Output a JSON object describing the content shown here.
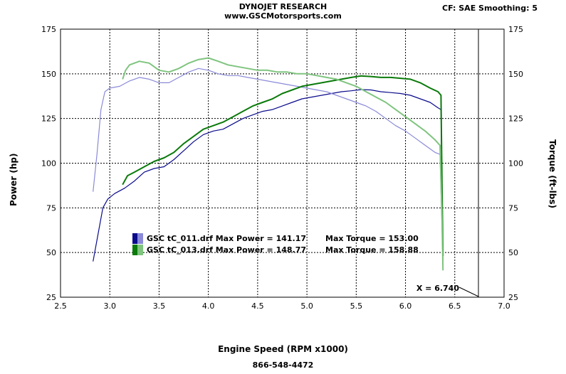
{
  "header": {
    "title": "DYNOJET RESEARCH",
    "subtitle": "www.GSCMotorsports.com",
    "settings": "CF: SAE  Smoothing: 5"
  },
  "footer": {
    "phone": "866-548-4472"
  },
  "colors": {
    "run1_power": "#0a0a8c",
    "run1_torque": "#8a8ad8",
    "run2_power": "#0a7a0a",
    "run2_torque": "#7fc47f"
  },
  "chart_data": {
    "type": "line",
    "xlabel": "Engine Speed (RPM x1000)",
    "ylabel": "Power (hp)",
    "ylabel_right": "Torque (ft-lbs)",
    "xlim": [
      2.5,
      7.0
    ],
    "ylim": [
      25,
      175
    ],
    "xticks": [
      "2.5",
      "3.0",
      "3.5",
      "4.0",
      "4.5",
      "5.0",
      "5.5",
      "6.0",
      "6.5",
      "7.0"
    ],
    "yticks": [
      "25",
      "50",
      "75",
      "100",
      "125",
      "150",
      "175"
    ],
    "yticks_right": [
      "25",
      "50",
      "75",
      "100",
      "125",
      "150",
      "175"
    ],
    "grid": true,
    "cursor": {
      "x": 6.74,
      "label": "X = 6.740"
    },
    "legend": [
      {
        "file": "GSC tC_011.drf",
        "text": "GSC tC_011.drf Max Power = 141.17",
        "torque_text": "Max Torque = 153.00"
      },
      {
        "file": "GSC tC_013.drf",
        "text": "GSC tC_013.drf Max Power = 148.77",
        "torque_text": "Max Torque = 158.88"
      }
    ],
    "series": [
      {
        "kind": "power",
        "x": [
          2.83,
          2.88,
          2.93,
          2.98,
          3.05,
          3.15,
          3.25,
          3.35,
          3.45,
          3.55,
          3.65,
          3.75,
          3.85,
          3.95,
          4.05,
          4.15,
          4.25,
          4.35,
          4.45,
          4.55,
          4.65,
          4.75,
          4.85,
          4.95,
          5.05,
          5.15,
          5.25,
          5.35,
          5.45,
          5.55,
          5.65,
          5.75,
          5.85,
          5.95,
          6.05,
          6.15,
          6.25,
          6.33,
          6.36,
          6.37,
          6.38
        ],
        "y": [
          45,
          60,
          75,
          80,
          83,
          86,
          90,
          95,
          97,
          98,
          102,
          107,
          112,
          116,
          118,
          119,
          122,
          125,
          127,
          129,
          130,
          132,
          134,
          136,
          137,
          138,
          139,
          140,
          140.5,
          141.2,
          141,
          140,
          139.5,
          139,
          138,
          136,
          134,
          131,
          130,
          80,
          45
        ]
      },
      {
        "kind": "torque",
        "x": [
          2.83,
          2.87,
          2.91,
          2.95,
          3.0,
          3.1,
          3.2,
          3.3,
          3.4,
          3.5,
          3.6,
          3.7,
          3.8,
          3.9,
          4.0,
          4.1,
          4.2,
          4.3,
          4.4,
          4.5,
          4.6,
          4.7,
          4.8,
          4.9,
          5.0,
          5.1,
          5.2,
          5.3,
          5.4,
          5.5,
          5.6,
          5.7,
          5.8,
          5.9,
          6.0,
          6.1,
          6.2,
          6.3,
          6.35,
          6.37,
          6.38
        ],
        "y": [
          84,
          105,
          130,
          140,
          142,
          143,
          146,
          148,
          147,
          145,
          145,
          148,
          151,
          153,
          152,
          150,
          149,
          149,
          148,
          147,
          146,
          145,
          144,
          143,
          142,
          141,
          140,
          138,
          136,
          134,
          132,
          129,
          125,
          121,
          118,
          114,
          110,
          106,
          105,
          65,
          42
        ]
      },
      {
        "kind": "power",
        "x": [
          3.13,
          3.18,
          3.25,
          3.35,
          3.45,
          3.55,
          3.65,
          3.75,
          3.85,
          3.95,
          4.05,
          4.15,
          4.25,
          4.35,
          4.45,
          4.55,
          4.65,
          4.75,
          4.85,
          4.95,
          5.05,
          5.15,
          5.25,
          5.35,
          5.45,
          5.55,
          5.65,
          5.75,
          5.85,
          5.95,
          6.05,
          6.15,
          6.25,
          6.33,
          6.36,
          6.37,
          6.38
        ],
        "y": [
          88,
          93,
          95,
          98,
          101,
          103,
          106,
          111,
          115,
          119,
          121,
          123,
          126,
          129,
          132,
          134,
          136,
          139,
          141,
          143,
          144,
          145,
          146,
          147,
          148,
          148.8,
          148.5,
          148,
          148,
          147.5,
          147,
          145,
          142,
          140,
          138,
          90,
          48
        ]
      },
      {
        "kind": "torque",
        "x": [
          3.13,
          3.16,
          3.2,
          3.3,
          3.4,
          3.5,
          3.6,
          3.7,
          3.8,
          3.9,
          4.0,
          4.1,
          4.2,
          4.3,
          4.4,
          4.5,
          4.6,
          4.7,
          4.8,
          4.9,
          5.0,
          5.1,
          5.2,
          5.3,
          5.4,
          5.5,
          5.6,
          5.7,
          5.8,
          5.9,
          6.0,
          6.1,
          6.2,
          6.3,
          6.35,
          6.37,
          6.38
        ],
        "y": [
          147,
          152,
          155,
          157,
          156,
          152,
          151,
          153,
          156,
          158,
          158.9,
          157,
          155,
          154,
          153,
          152,
          152,
          151,
          151,
          150,
          150,
          149,
          148,
          147,
          145,
          143,
          140,
          137,
          134,
          130,
          126,
          122,
          118,
          113,
          110,
          70,
          40
        ]
      }
    ]
  }
}
